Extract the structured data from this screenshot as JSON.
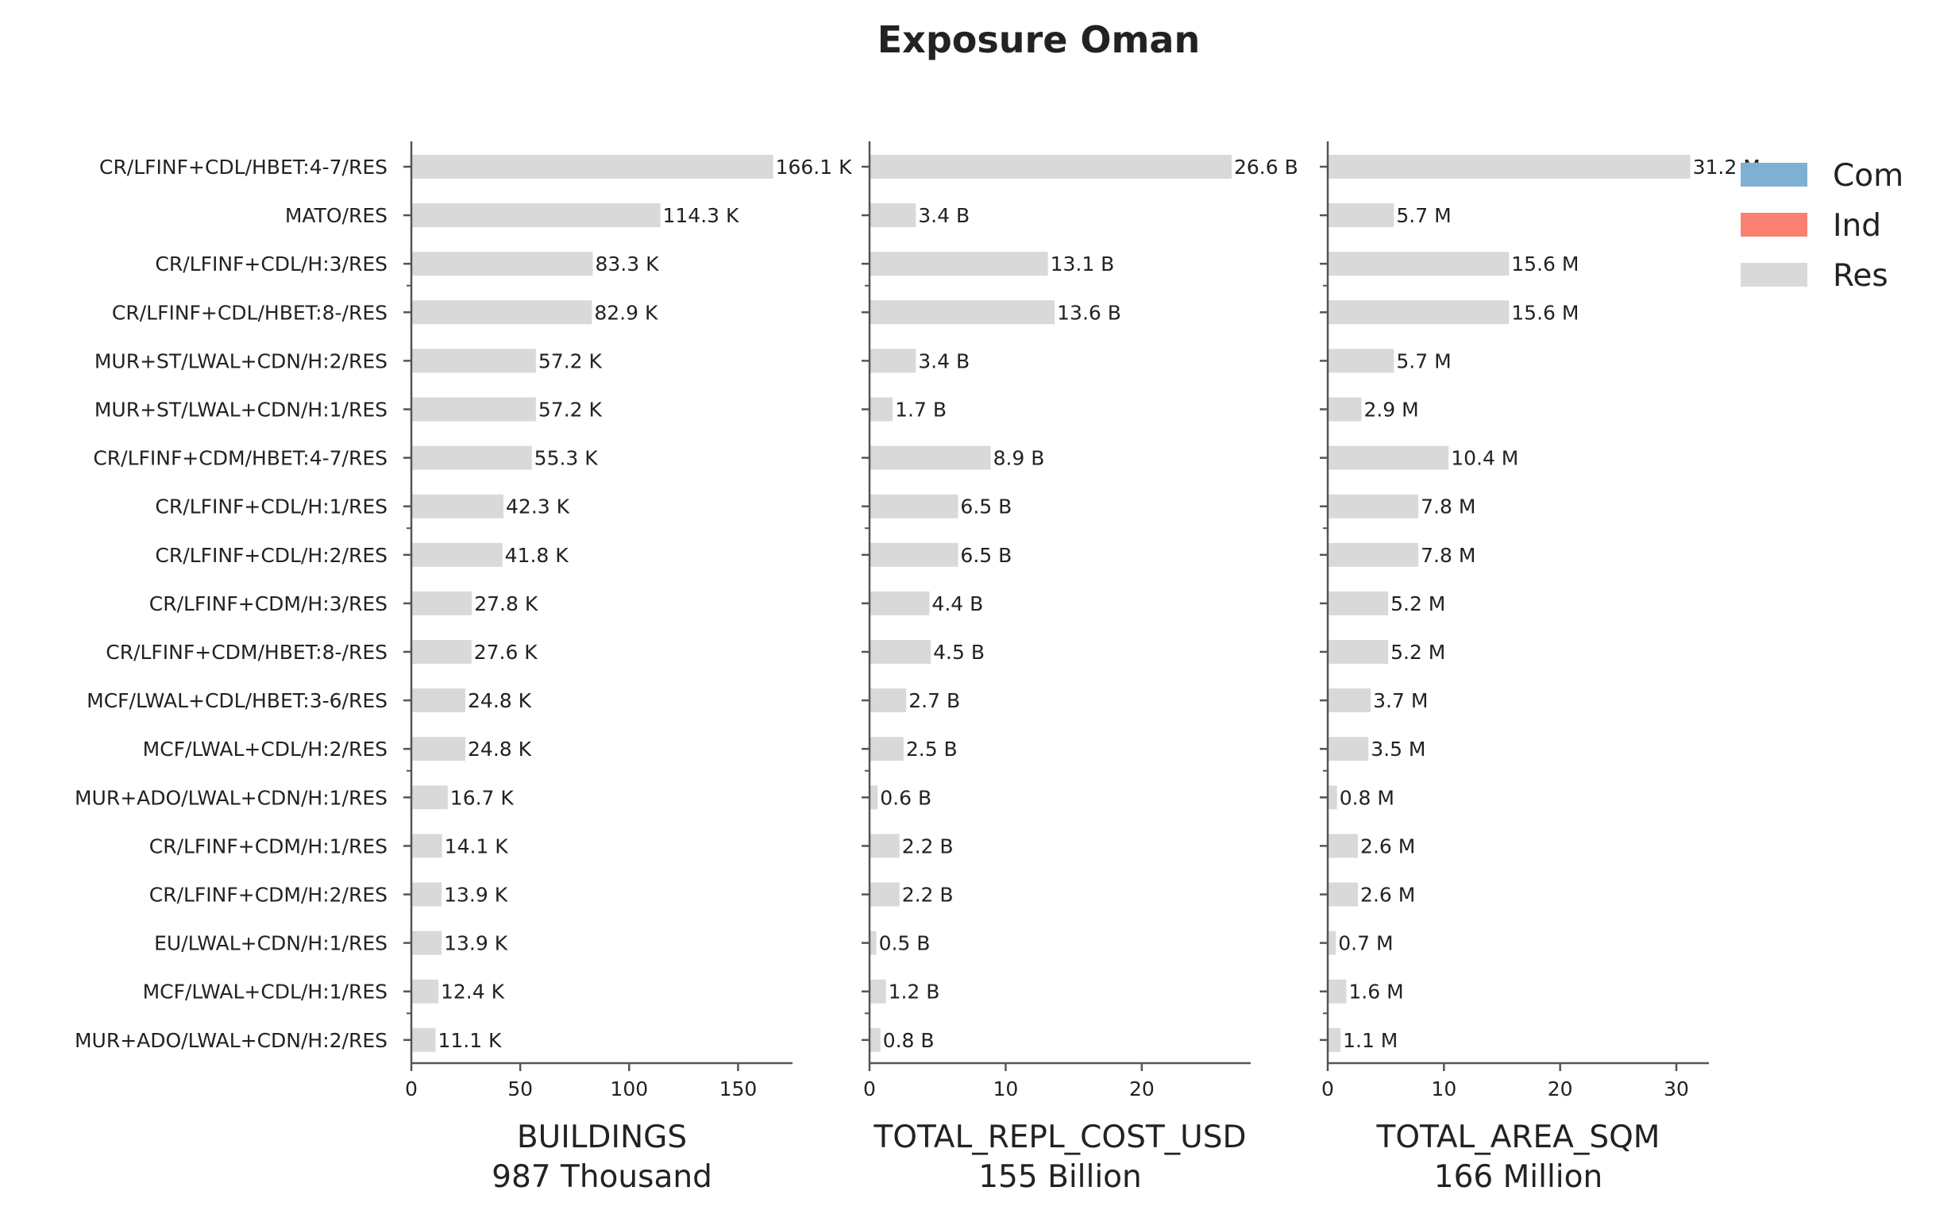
{
  "chart_data": {
    "type": "bar",
    "orientation": "horizontal",
    "title": "Exposure Oman",
    "categories": [
      "CR/LFINF+CDL/HBET:4-7/RES",
      "MATO/RES",
      "CR/LFINF+CDL/H:3/RES",
      "CR/LFINF+CDL/HBET:8-/RES",
      "MUR+ST/LWAL+CDN/H:2/RES",
      "MUR+ST/LWAL+CDN/H:1/RES",
      "CR/LFINF+CDM/HBET:4-7/RES",
      "CR/LFINF+CDL/H:1/RES",
      "CR/LFINF+CDL/H:2/RES",
      "CR/LFINF+CDM/H:3/RES",
      "CR/LFINF+CDM/HBET:8-/RES",
      "MCF/LWAL+CDL/HBET:3-6/RES",
      "MCF/LWAL+CDL/H:2/RES",
      "MUR+ADO/LWAL+CDN/H:1/RES",
      "CR/LFINF+CDM/H:1/RES",
      "CR/LFINF+CDM/H:2/RES",
      "EU/LWAL+CDN/H:1/RES",
      "MCF/LWAL+CDL/H:1/RES",
      "MUR+ADO/LWAL+CDN/H:2/RES"
    ],
    "legend": {
      "placement": "top-right",
      "entries": [
        {
          "name": "Com",
          "color": "#7fb0d4"
        },
        {
          "name": "Ind",
          "color": "#fa8072"
        },
        {
          "name": "Res",
          "color": "#d9d9d9"
        }
      ]
    },
    "bar_color": "#d9d9d9",
    "panels": [
      {
        "xlabel": "BUILDINGS",
        "subtitle": "987 Thousand",
        "xlim": [
          0,
          175
        ],
        "xticks": [
          0,
          50,
          100,
          150
        ],
        "values": [
          166.1,
          114.3,
          83.3,
          82.9,
          57.2,
          57.2,
          55.3,
          42.3,
          41.8,
          27.8,
          27.6,
          24.8,
          24.8,
          16.7,
          14.1,
          13.9,
          13.9,
          12.4,
          11.1
        ],
        "labels": [
          "166.1 K",
          "114.3 K",
          "83.3 K",
          "82.9 K",
          "57.2 K",
          "57.2 K",
          "55.3 K",
          "42.3 K",
          "41.8 K",
          "27.8 K",
          "27.6 K",
          "24.8 K",
          "24.8 K",
          "16.7 K",
          "14.1 K",
          "13.9 K",
          "13.9 K",
          "12.4 K",
          "11.1 K"
        ]
      },
      {
        "xlabel": "TOTAL_REPL_COST_USD",
        "subtitle": "155 Billion",
        "xlim": [
          0,
          28
        ],
        "xticks": [
          0,
          10,
          20
        ],
        "values": [
          26.6,
          3.4,
          13.1,
          13.6,
          3.4,
          1.7,
          8.9,
          6.5,
          6.5,
          4.4,
          4.5,
          2.7,
          2.5,
          0.6,
          2.2,
          2.2,
          0.5,
          1.2,
          0.8
        ],
        "labels": [
          "26.6 B",
          "3.4 B",
          "13.1 B",
          "13.6 B",
          "3.4 B",
          "1.7 B",
          "8.9 B",
          "6.5 B",
          "6.5 B",
          "4.4 B",
          "4.5 B",
          "2.7 B",
          "2.5 B",
          "0.6 B",
          "2.2 B",
          "2.2 B",
          "0.5 B",
          "1.2 B",
          "0.8 B"
        ]
      },
      {
        "xlabel": "TOTAL_AREA_SQM",
        "subtitle": "166 Million",
        "xlim": [
          0,
          32.8
        ],
        "xticks": [
          0,
          10,
          20,
          30
        ],
        "values": [
          31.2,
          5.7,
          15.6,
          15.6,
          5.7,
          2.9,
          10.4,
          7.8,
          7.8,
          5.2,
          5.2,
          3.7,
          3.5,
          0.8,
          2.6,
          2.6,
          0.7,
          1.6,
          1.1
        ],
        "labels": [
          "31.2 M",
          "5.7 M",
          "15.6 M",
          "15.6 M",
          "5.7 M",
          "2.9 M",
          "10.4 M",
          "7.8 M",
          "7.8 M",
          "5.2 M",
          "5.2 M",
          "3.7 M",
          "3.5 M",
          "0.8 M",
          "2.6 M",
          "2.6 M",
          "0.7 M",
          "1.6 M",
          "1.1 M"
        ]
      }
    ]
  }
}
